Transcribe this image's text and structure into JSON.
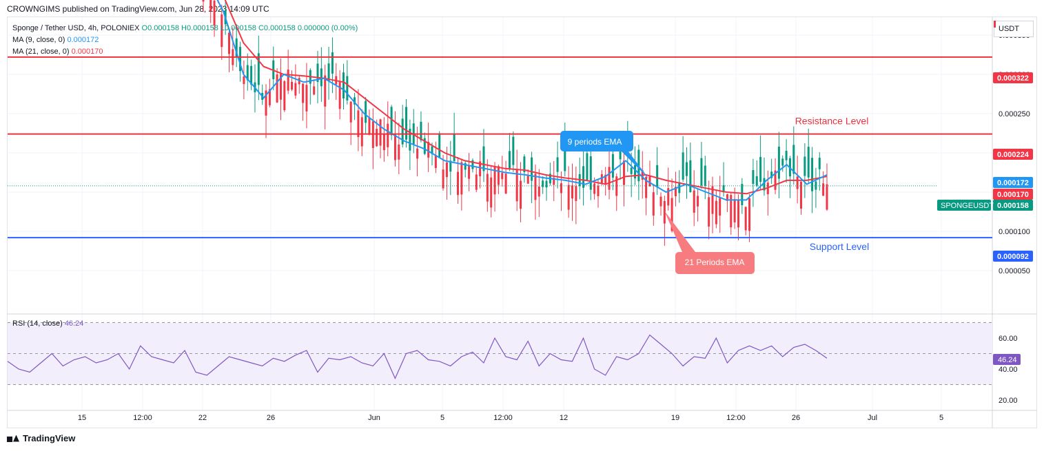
{
  "header": "CROWNGIMS published on TradingView.com, Jun 28, 2023 14:09 UTC",
  "legend": {
    "symbol_line": "Sponge / Tether USD, 4h, POLONIEX",
    "ohlc": "O0.000158 H0.000158 L0.000158 C0.000158 0.000000 (0.00%)",
    "ma9_label": "MA (9, close, 0)",
    "ma9_value": "0.000172",
    "ma21_label": "MA (21, close, 0)",
    "ma21_value": "0.000170",
    "rsi_label": "RSI (14, close)",
    "rsi_value": "46.24"
  },
  "currency_button": "USDT",
  "footer_logo": "TradingView",
  "colors": {
    "up": "#089981",
    "down": "#f23645",
    "ma9": "#2196f3",
    "ma21": "#f23645",
    "resistance": "#e8333f",
    "support": "#2962ff",
    "rsi": "#7e57c2",
    "rsi_band": "#f3eefc"
  },
  "chart_data": {
    "type": "candlestick",
    "symbol": "SPONGEUSDT",
    "interval": "4h",
    "y_axis_ticks": [
      "0.000350",
      "0.000300",
      "0.000250",
      "0.000200",
      "0.000150",
      "0.000100",
      "0.000050"
    ],
    "x_axis_ticks": [
      "15",
      "12:00",
      "22",
      "26",
      "Jun",
      "5",
      "12:00",
      "12",
      "19",
      "12:00",
      "26",
      "Jul",
      "5"
    ],
    "price_labels": [
      {
        "text": "0.000322",
        "value": 0.000322,
        "kind": "resistance-1"
      },
      {
        "text": "0.000224",
        "value": 0.000224,
        "kind": "resistance-2"
      },
      {
        "text": "0.000172",
        "value": 0.000172,
        "kind": "ma9"
      },
      {
        "text": "0.000170",
        "value": 0.00017,
        "kind": "ma21"
      },
      {
        "text": "0.000158",
        "value": 0.000158,
        "kind": "last"
      },
      {
        "text": "0.000092",
        "value": 9.2e-05,
        "kind": "support"
      }
    ],
    "last_price_tag": "SPONGEUSDT",
    "horizontal_levels": [
      {
        "name": "Resistance Level",
        "value": 0.000322
      },
      {
        "name": "Resistance Level",
        "value": 0.000224
      },
      {
        "name": "Support Level",
        "value": 9.2e-05
      }
    ],
    "annotations": {
      "resistance_text": "Resistance Level",
      "support_text": "Support Level",
      "ema9_callout": "9 periods EMA",
      "ema21_callout": "21 Periods EMA"
    },
    "ema9_approx": [
      0.00043,
      0.00038,
      0.0003,
      0.00027,
      0.0003,
      0.00029,
      0.000295,
      0.00028,
      0.00025,
      0.00023,
      0.000215,
      0.000205,
      0.00019,
      0.000185,
      0.00018,
      0.000175,
      0.000172,
      0.000168,
      0.000165,
      0.00016,
      0.00017,
      0.00019,
      0.000165,
      0.00015,
      0.00016,
      0.00015,
      0.00014,
      0.00014,
      0.000165,
      0.000185,
      0.00016,
      0.000172
    ],
    "ema21_approx": [
      0.00047,
      0.0004,
      0.00034,
      0.00031,
      0.0003,
      0.000298,
      0.000295,
      0.00029,
      0.00027,
      0.00025,
      0.00023,
      0.000215,
      0.0002,
      0.00019,
      0.000185,
      0.00018,
      0.000178,
      0.000172,
      0.000168,
      0.000165,
      0.00016,
      0.00017,
      0.000172,
      0.000165,
      0.00016,
      0.000155,
      0.00015,
      0.000148,
      0.000155,
      0.000165,
      0.000165,
      0.00017
    ],
    "rsi": {
      "period": 14,
      "current": 46.24,
      "ticks": [
        "60.00",
        "40.00",
        "20.00"
      ],
      "band": [
        30,
        70
      ],
      "values_approx": [
        45,
        40,
        38,
        44,
        50,
        42,
        46,
        48,
        44,
        46,
        50,
        40,
        55,
        48,
        46,
        44,
        52,
        38,
        36,
        42,
        48,
        46,
        44,
        42,
        47,
        45,
        49,
        52,
        38,
        47,
        46,
        48,
        44,
        42,
        50,
        34,
        50,
        52,
        46,
        45,
        42,
        48,
        51,
        44,
        60,
        48,
        46,
        58,
        42,
        50,
        46,
        45,
        60,
        40,
        36,
        48,
        46,
        50,
        62,
        56,
        50,
        42,
        48,
        47,
        60,
        44,
        52,
        55,
        52,
        55,
        48,
        54,
        56,
        52,
        47
      ]
    }
  }
}
